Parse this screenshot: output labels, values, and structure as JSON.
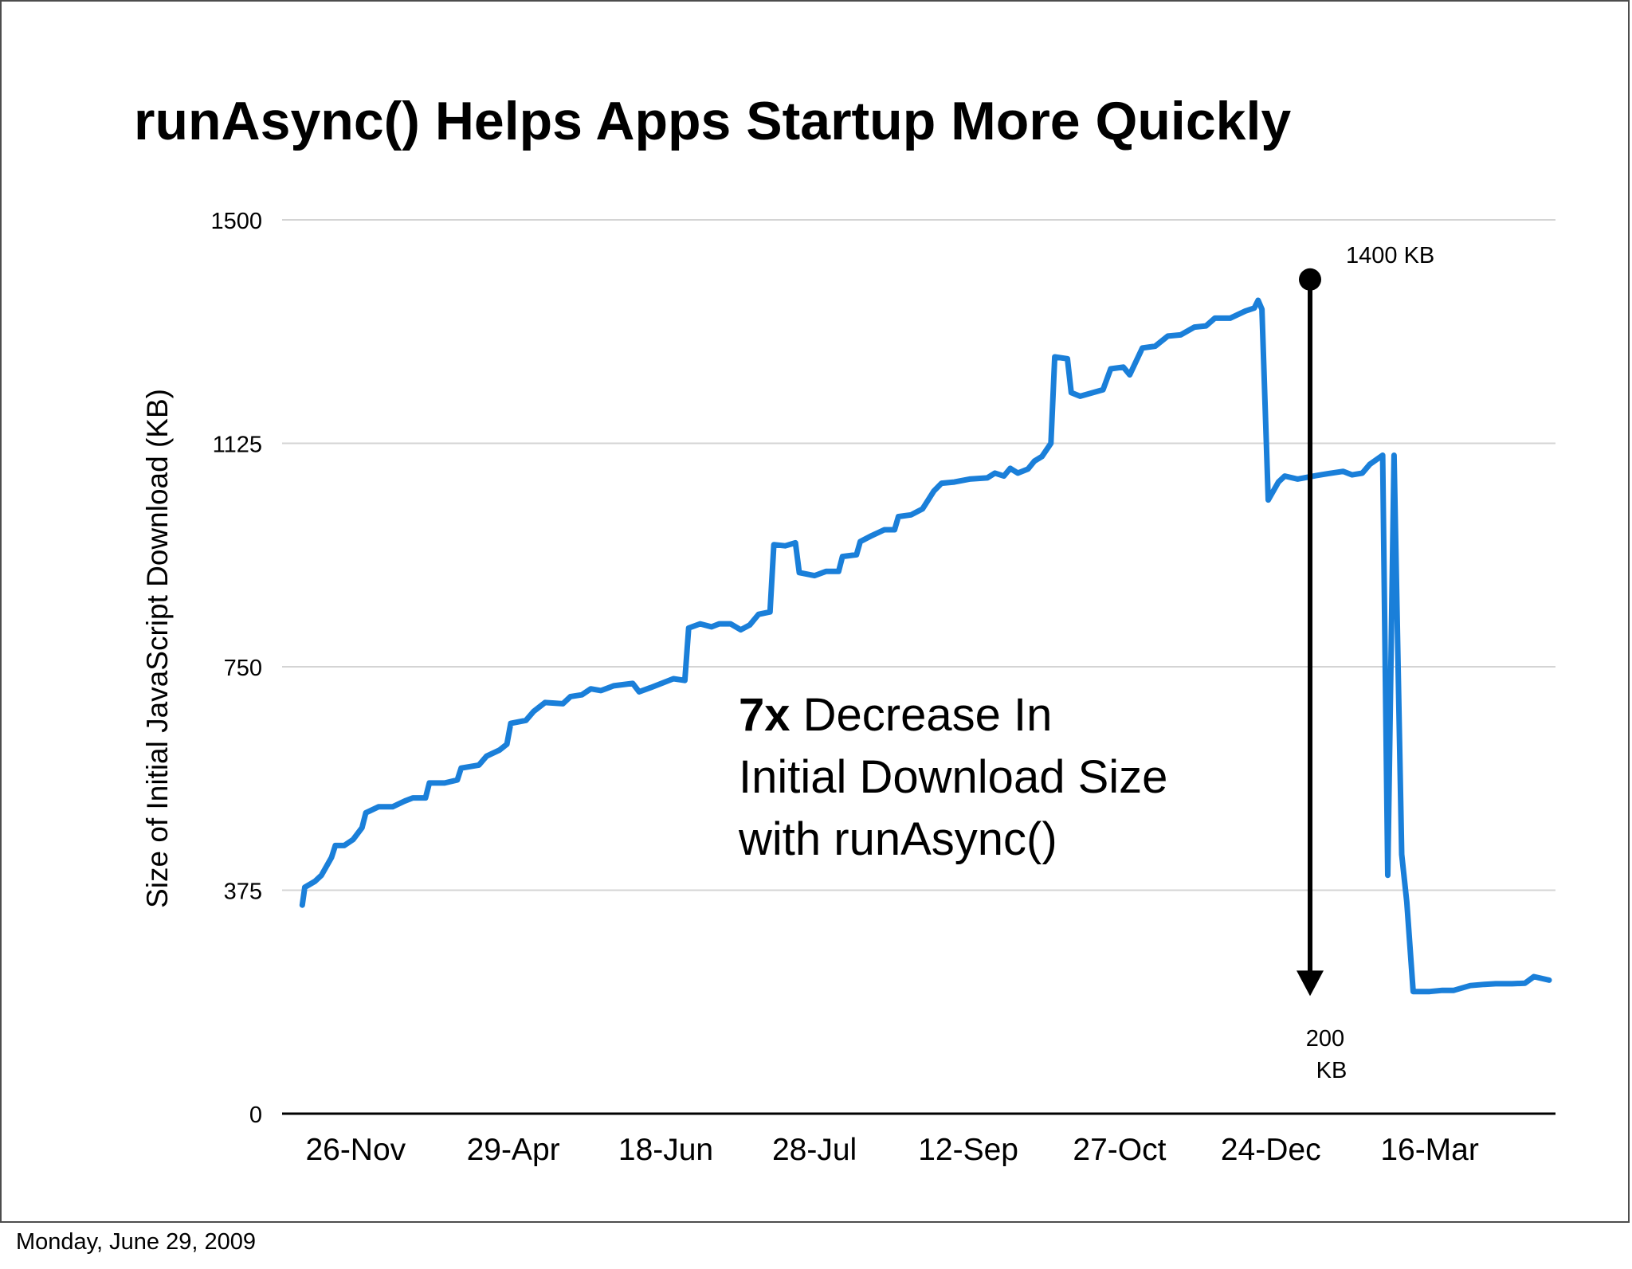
{
  "footer": {
    "date_text": "Monday, June 29, 2009"
  },
  "annotation": {
    "emphasis": "7x",
    "line1_rest": " Decrease In",
    "line2": "Initial Download Size",
    "line3": "with runAsync()",
    "start_label": "1400 KB",
    "end_label_line1": "200",
    "end_label_line2": "KB"
  },
  "colors": {
    "series": "#1a7fd9",
    "grid": "#d4d4d4",
    "axis": "#000000",
    "arrow": "#000000"
  },
  "chart_data": {
    "type": "line",
    "title": "runAsync() Helps Apps Startup More Quickly",
    "xlabel": "",
    "ylabel": "Size of Initial JavaScript Download (KB)",
    "ylim": [
      0,
      1500
    ],
    "yticks": [
      0,
      375,
      750,
      1125,
      1500
    ],
    "xlim": [
      0,
      100
    ],
    "x_tick_labels": [
      {
        "label": "26-Nov",
        "x": 5.6
      },
      {
        "label": "29-Apr",
        "x": 18.0
      },
      {
        "label": "18-Jun",
        "x": 30.0
      },
      {
        "label": "28-Jul",
        "x": 41.7
      },
      {
        "label": "12-Sep",
        "x": 53.8
      },
      {
        "label": "27-Oct",
        "x": 65.7
      },
      {
        "label": "24-Dec",
        "x": 77.6
      },
      {
        "label": "16-Mar",
        "x": 90.1
      }
    ],
    "grid": true,
    "legend": "none",
    "series": [
      {
        "values": [
          [
            1.4,
            350
          ],
          [
            1.6,
            380
          ],
          [
            2.4,
            390
          ],
          [
            2.9,
            400
          ],
          [
            3.7,
            430
          ],
          [
            4.0,
            450
          ],
          [
            4.7,
            450
          ],
          [
            5.4,
            460
          ],
          [
            6.1,
            480
          ],
          [
            6.4,
            505
          ],
          [
            7.4,
            515
          ],
          [
            8.5,
            515
          ],
          [
            9.5,
            525
          ],
          [
            10.1,
            530
          ],
          [
            11.1,
            530
          ],
          [
            11.4,
            555
          ],
          [
            12.6,
            555
          ],
          [
            13.6,
            560
          ],
          [
            13.9,
            580
          ],
          [
            15.3,
            585
          ],
          [
            15.9,
            600
          ],
          [
            16.9,
            610
          ],
          [
            17.5,
            620
          ],
          [
            17.8,
            655
          ],
          [
            19.0,
            660
          ],
          [
            19.6,
            675
          ],
          [
            20.5,
            690
          ],
          [
            21.9,
            688
          ],
          [
            22.5,
            700
          ],
          [
            23.4,
            703
          ],
          [
            24.1,
            713
          ],
          [
            24.9,
            710
          ],
          [
            25.9,
            718
          ],
          [
            27.4,
            722
          ],
          [
            27.9,
            708
          ],
          [
            28.8,
            715
          ],
          [
            30.6,
            730
          ],
          [
            31.5,
            727
          ],
          [
            31.8,
            815
          ],
          [
            32.7,
            822
          ],
          [
            33.6,
            817
          ],
          [
            34.2,
            822
          ],
          [
            35.1,
            822
          ],
          [
            35.9,
            812
          ],
          [
            36.6,
            820
          ],
          [
            37.3,
            838
          ],
          [
            38.2,
            842
          ],
          [
            38.5,
            955
          ],
          [
            39.4,
            953
          ],
          [
            40.2,
            958
          ],
          [
            40.5,
            908
          ],
          [
            41.7,
            903
          ],
          [
            42.6,
            910
          ],
          [
            43.6,
            910
          ],
          [
            43.9,
            935
          ],
          [
            45.0,
            938
          ],
          [
            45.3,
            960
          ],
          [
            46.2,
            970
          ],
          [
            47.2,
            980
          ],
          [
            48.0,
            980
          ],
          [
            48.3,
            1002
          ],
          [
            49.3,
            1005
          ],
          [
            50.2,
            1015
          ],
          [
            51.1,
            1045
          ],
          [
            51.7,
            1058
          ],
          [
            52.7,
            1060
          ],
          [
            53.9,
            1065
          ],
          [
            55.3,
            1067
          ],
          [
            55.9,
            1075
          ],
          [
            56.6,
            1070
          ],
          [
            57.1,
            1083
          ],
          [
            57.7,
            1075
          ],
          [
            58.5,
            1082
          ],
          [
            59.0,
            1095
          ],
          [
            59.6,
            1103
          ],
          [
            60.3,
            1125
          ],
          [
            60.6,
            1270
          ],
          [
            61.6,
            1267
          ],
          [
            61.9,
            1210
          ],
          [
            62.6,
            1204
          ],
          [
            64.4,
            1215
          ],
          [
            65.0,
            1250
          ],
          [
            66.0,
            1253
          ],
          [
            66.5,
            1240
          ],
          [
            67.5,
            1285
          ],
          [
            68.5,
            1288
          ],
          [
            69.5,
            1305
          ],
          [
            70.5,
            1307
          ],
          [
            71.6,
            1320
          ],
          [
            72.5,
            1322
          ],
          [
            73.2,
            1335
          ],
          [
            74.4,
            1335
          ],
          [
            75.6,
            1347
          ],
          [
            76.3,
            1352
          ],
          [
            76.6,
            1365
          ],
          [
            76.9,
            1350
          ],
          [
            77.4,
            1030
          ],
          [
            78.2,
            1060
          ],
          [
            78.7,
            1070
          ],
          [
            79.7,
            1065
          ],
          [
            81.2,
            1071
          ],
          [
            82.1,
            1074
          ],
          [
            83.3,
            1078
          ],
          [
            84.0,
            1072
          ],
          [
            84.8,
            1075
          ],
          [
            85.4,
            1090
          ],
          [
            86.4,
            1105
          ],
          [
            86.8,
            400
          ],
          [
            87.3,
            1105
          ],
          [
            87.9,
            435
          ],
          [
            88.3,
            355
          ],
          [
            88.8,
            205
          ],
          [
            90.1,
            205
          ],
          [
            91.1,
            207
          ],
          [
            92.0,
            207
          ],
          [
            93.3,
            215
          ],
          [
            94.4,
            217
          ],
          [
            95.3,
            218
          ],
          [
            96.6,
            218
          ],
          [
            97.6,
            219
          ],
          [
            98.3,
            230
          ],
          [
            99.5,
            224
          ]
        ]
      }
    ]
  }
}
